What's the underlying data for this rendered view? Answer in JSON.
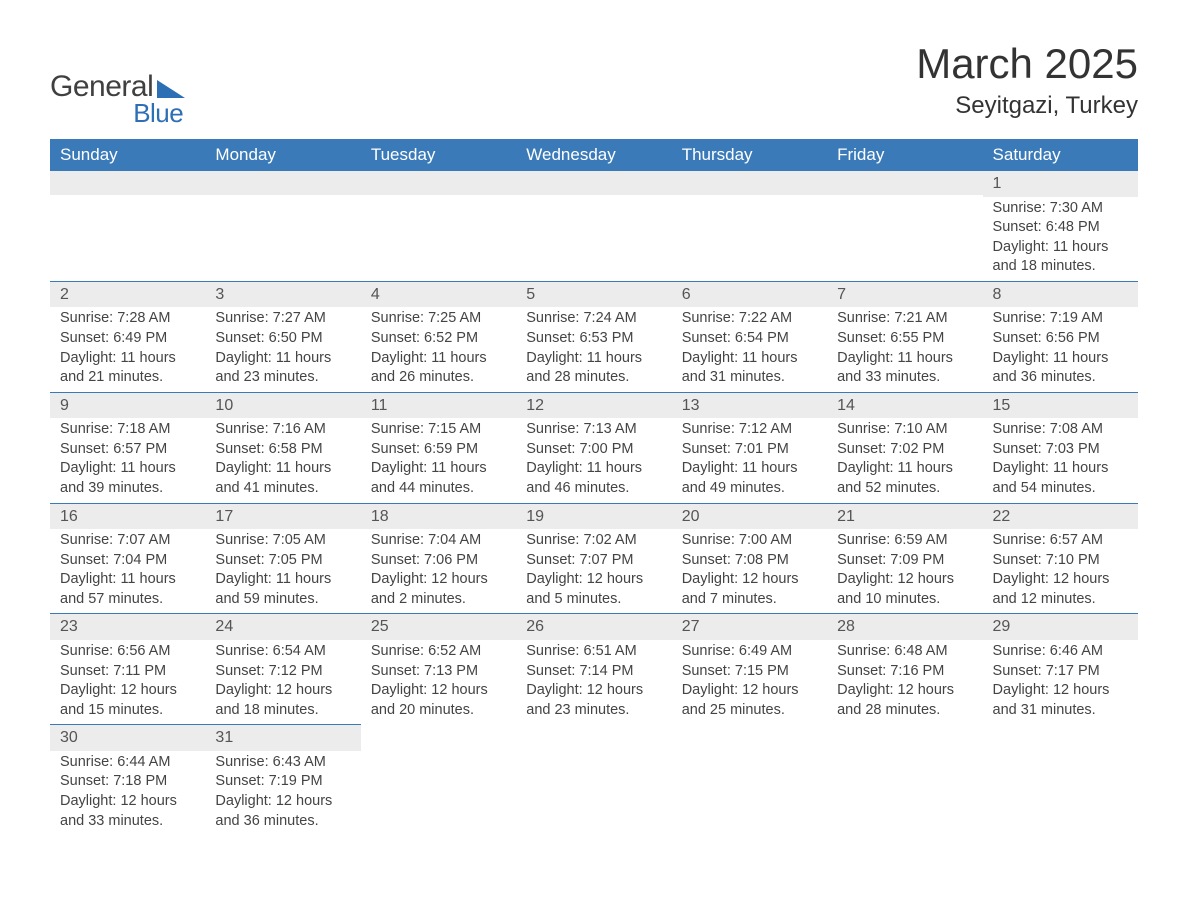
{
  "meta": {
    "logo_general": "General",
    "logo_blue": "Blue",
    "title": "March 2025",
    "location": "Seyitgazi, Turkey"
  },
  "palette": {
    "header_bg": "#3a7ab8",
    "header_text": "#ffffff",
    "dayhead_bg": "#ececec",
    "text": "#444444",
    "logo_accent": "#2d6fb5",
    "page_bg": "#ffffff"
  },
  "weekdays": [
    "Sunday",
    "Monday",
    "Tuesday",
    "Wednesday",
    "Thursday",
    "Friday",
    "Saturday"
  ],
  "weeks": [
    [
      null,
      null,
      null,
      null,
      null,
      null,
      {
        "n": "1",
        "sunrise": "Sunrise: 7:30 AM",
        "sunset": "Sunset: 6:48 PM",
        "dl1": "Daylight: 11 hours",
        "dl2": "and 18 minutes."
      }
    ],
    [
      {
        "n": "2",
        "sunrise": "Sunrise: 7:28 AM",
        "sunset": "Sunset: 6:49 PM",
        "dl1": "Daylight: 11 hours",
        "dl2": "and 21 minutes."
      },
      {
        "n": "3",
        "sunrise": "Sunrise: 7:27 AM",
        "sunset": "Sunset: 6:50 PM",
        "dl1": "Daylight: 11 hours",
        "dl2": "and 23 minutes."
      },
      {
        "n": "4",
        "sunrise": "Sunrise: 7:25 AM",
        "sunset": "Sunset: 6:52 PM",
        "dl1": "Daylight: 11 hours",
        "dl2": "and 26 minutes."
      },
      {
        "n": "5",
        "sunrise": "Sunrise: 7:24 AM",
        "sunset": "Sunset: 6:53 PM",
        "dl1": "Daylight: 11 hours",
        "dl2": "and 28 minutes."
      },
      {
        "n": "6",
        "sunrise": "Sunrise: 7:22 AM",
        "sunset": "Sunset: 6:54 PM",
        "dl1": "Daylight: 11 hours",
        "dl2": "and 31 minutes."
      },
      {
        "n": "7",
        "sunrise": "Sunrise: 7:21 AM",
        "sunset": "Sunset: 6:55 PM",
        "dl1": "Daylight: 11 hours",
        "dl2": "and 33 minutes."
      },
      {
        "n": "8",
        "sunrise": "Sunrise: 7:19 AM",
        "sunset": "Sunset: 6:56 PM",
        "dl1": "Daylight: 11 hours",
        "dl2": "and 36 minutes."
      }
    ],
    [
      {
        "n": "9",
        "sunrise": "Sunrise: 7:18 AM",
        "sunset": "Sunset: 6:57 PM",
        "dl1": "Daylight: 11 hours",
        "dl2": "and 39 minutes."
      },
      {
        "n": "10",
        "sunrise": "Sunrise: 7:16 AM",
        "sunset": "Sunset: 6:58 PM",
        "dl1": "Daylight: 11 hours",
        "dl2": "and 41 minutes."
      },
      {
        "n": "11",
        "sunrise": "Sunrise: 7:15 AM",
        "sunset": "Sunset: 6:59 PM",
        "dl1": "Daylight: 11 hours",
        "dl2": "and 44 minutes."
      },
      {
        "n": "12",
        "sunrise": "Sunrise: 7:13 AM",
        "sunset": "Sunset: 7:00 PM",
        "dl1": "Daylight: 11 hours",
        "dl2": "and 46 minutes."
      },
      {
        "n": "13",
        "sunrise": "Sunrise: 7:12 AM",
        "sunset": "Sunset: 7:01 PM",
        "dl1": "Daylight: 11 hours",
        "dl2": "and 49 minutes."
      },
      {
        "n": "14",
        "sunrise": "Sunrise: 7:10 AM",
        "sunset": "Sunset: 7:02 PM",
        "dl1": "Daylight: 11 hours",
        "dl2": "and 52 minutes."
      },
      {
        "n": "15",
        "sunrise": "Sunrise: 7:08 AM",
        "sunset": "Sunset: 7:03 PM",
        "dl1": "Daylight: 11 hours",
        "dl2": "and 54 minutes."
      }
    ],
    [
      {
        "n": "16",
        "sunrise": "Sunrise: 7:07 AM",
        "sunset": "Sunset: 7:04 PM",
        "dl1": "Daylight: 11 hours",
        "dl2": "and 57 minutes."
      },
      {
        "n": "17",
        "sunrise": "Sunrise: 7:05 AM",
        "sunset": "Sunset: 7:05 PM",
        "dl1": "Daylight: 11 hours",
        "dl2": "and 59 minutes."
      },
      {
        "n": "18",
        "sunrise": "Sunrise: 7:04 AM",
        "sunset": "Sunset: 7:06 PM",
        "dl1": "Daylight: 12 hours",
        "dl2": "and 2 minutes."
      },
      {
        "n": "19",
        "sunrise": "Sunrise: 7:02 AM",
        "sunset": "Sunset: 7:07 PM",
        "dl1": "Daylight: 12 hours",
        "dl2": "and 5 minutes."
      },
      {
        "n": "20",
        "sunrise": "Sunrise: 7:00 AM",
        "sunset": "Sunset: 7:08 PM",
        "dl1": "Daylight: 12 hours",
        "dl2": "and 7 minutes."
      },
      {
        "n": "21",
        "sunrise": "Sunrise: 6:59 AM",
        "sunset": "Sunset: 7:09 PM",
        "dl1": "Daylight: 12 hours",
        "dl2": "and 10 minutes."
      },
      {
        "n": "22",
        "sunrise": "Sunrise: 6:57 AM",
        "sunset": "Sunset: 7:10 PM",
        "dl1": "Daylight: 12 hours",
        "dl2": "and 12 minutes."
      }
    ],
    [
      {
        "n": "23",
        "sunrise": "Sunrise: 6:56 AM",
        "sunset": "Sunset: 7:11 PM",
        "dl1": "Daylight: 12 hours",
        "dl2": "and 15 minutes."
      },
      {
        "n": "24",
        "sunrise": "Sunrise: 6:54 AM",
        "sunset": "Sunset: 7:12 PM",
        "dl1": "Daylight: 12 hours",
        "dl2": "and 18 minutes."
      },
      {
        "n": "25",
        "sunrise": "Sunrise: 6:52 AM",
        "sunset": "Sunset: 7:13 PM",
        "dl1": "Daylight: 12 hours",
        "dl2": "and 20 minutes."
      },
      {
        "n": "26",
        "sunrise": "Sunrise: 6:51 AM",
        "sunset": "Sunset: 7:14 PM",
        "dl1": "Daylight: 12 hours",
        "dl2": "and 23 minutes."
      },
      {
        "n": "27",
        "sunrise": "Sunrise: 6:49 AM",
        "sunset": "Sunset: 7:15 PM",
        "dl1": "Daylight: 12 hours",
        "dl2": "and 25 minutes."
      },
      {
        "n": "28",
        "sunrise": "Sunrise: 6:48 AM",
        "sunset": "Sunset: 7:16 PM",
        "dl1": "Daylight: 12 hours",
        "dl2": "and 28 minutes."
      },
      {
        "n": "29",
        "sunrise": "Sunrise: 6:46 AM",
        "sunset": "Sunset: 7:17 PM",
        "dl1": "Daylight: 12 hours",
        "dl2": "and 31 minutes."
      }
    ],
    [
      {
        "n": "30",
        "sunrise": "Sunrise: 6:44 AM",
        "sunset": "Sunset: 7:18 PM",
        "dl1": "Daylight: 12 hours",
        "dl2": "and 33 minutes."
      },
      {
        "n": "31",
        "sunrise": "Sunrise: 6:43 AM",
        "sunset": "Sunset: 7:19 PM",
        "dl1": "Daylight: 12 hours",
        "dl2": "and 36 minutes."
      },
      null,
      null,
      null,
      null,
      null
    ]
  ]
}
